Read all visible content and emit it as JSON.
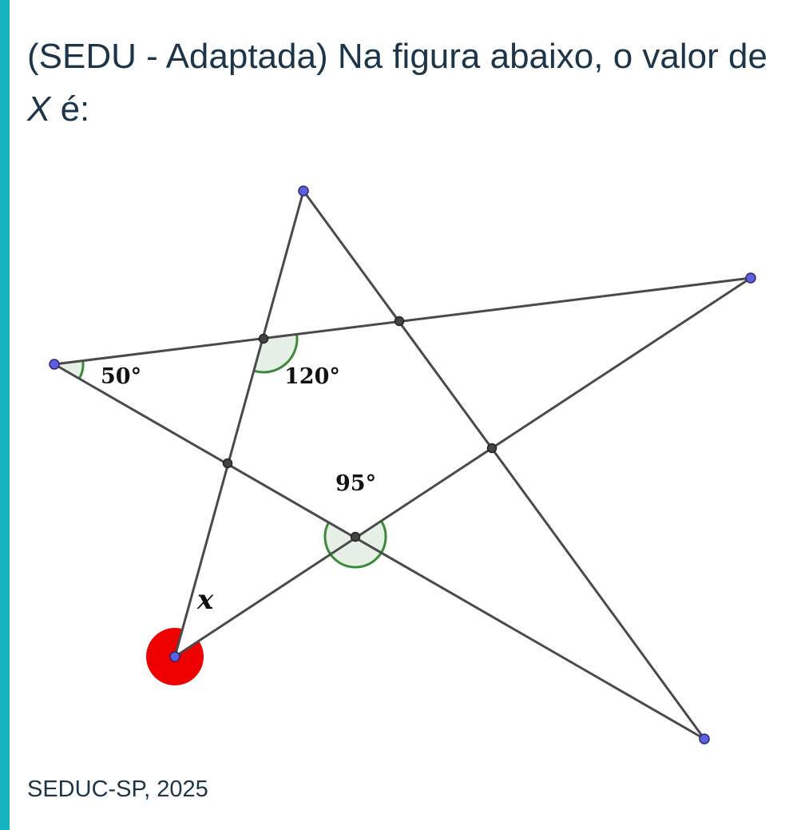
{
  "question": {
    "text": "(SEDU - Adaptada) Na figura abaixo, o valor de",
    "variable": "X",
    "text_end": " é:"
  },
  "figure": {
    "angles": [
      {
        "label": "50°",
        "vertex": "left-point"
      },
      {
        "label": "120°",
        "vertex": "upper-left-intersection"
      },
      {
        "label": "95°",
        "vertex": "lower-intersection"
      },
      {
        "label": "x",
        "vertex": "bottom-left-point",
        "unknown": true
      }
    ],
    "colors": {
      "line": "#4a4a4a",
      "vertex": "#5b5fe0",
      "intersection": "#444444",
      "known_angle": "#3a8a3a",
      "unknown_angle": "#ee0000",
      "accent_bar": "#14b4c0"
    }
  },
  "source": "SEDUC-SP, 2025"
}
